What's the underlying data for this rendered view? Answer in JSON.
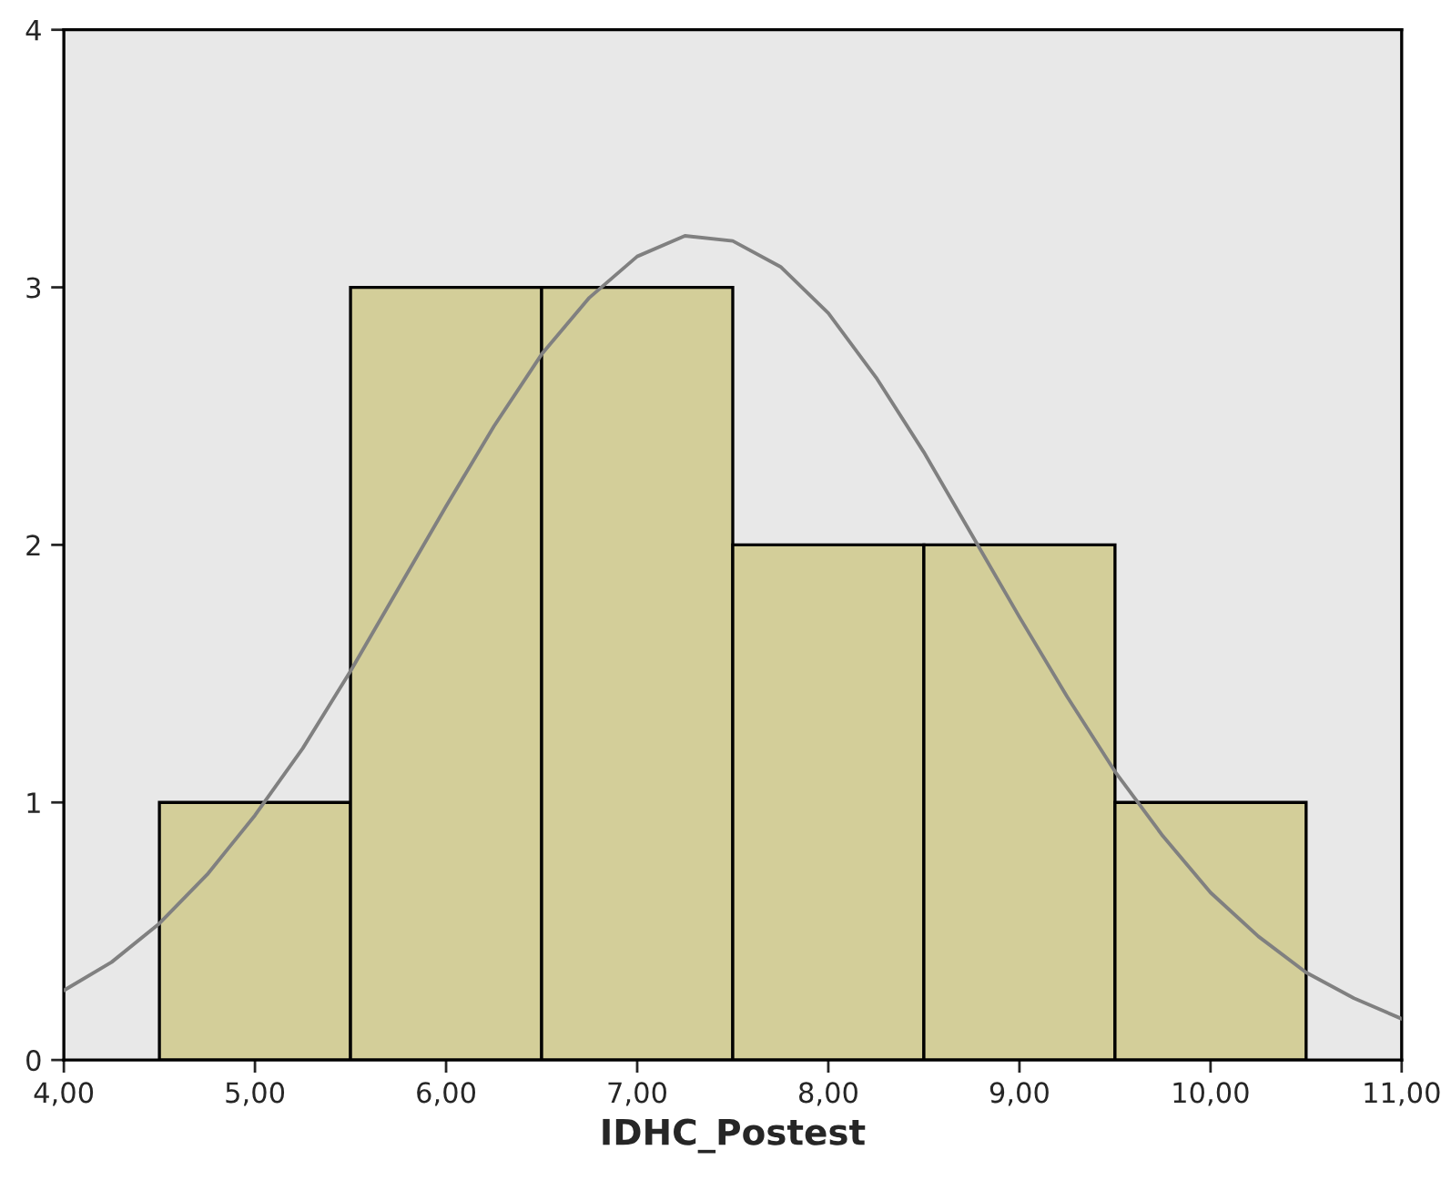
{
  "chart_data": {
    "type": "histogram",
    "xlabel": "IDHC_Postest",
    "bins": [
      4.5,
      5.5,
      6.5,
      7.5,
      8.5,
      9.5,
      10.5
    ],
    "series": [
      {
        "color": "#d3ce99",
        "values": [
          1,
          3,
          3,
          2,
          2,
          1
        ]
      },
      {
        "type": "line",
        "color": "#808080",
        "x": [
          4,
          4.25,
          4.5,
          4.75,
          5,
          5.25,
          5.5,
          5.75,
          6,
          6.25,
          6.5,
          6.75,
          7,
          7.25,
          7.5,
          7.75,
          8,
          8.25,
          8.5,
          8.75,
          9,
          9.25,
          9.5,
          9.75,
          10,
          10.25,
          10.5,
          10.75,
          11
        ],
        "values": [
          0.27,
          0.38,
          0.53,
          0.72,
          0.95,
          1.21,
          1.51,
          1.83,
          2.15,
          2.46,
          2.74,
          2.96,
          3.12,
          3.2,
          3.18,
          3.08,
          2.9,
          2.65,
          2.36,
          2.04,
          1.72,
          1.41,
          1.12,
          0.87,
          0.65,
          0.48,
          0.34,
          0.24,
          0.16
        ]
      }
    ],
    "xlim": [
      4,
      11
    ],
    "xticks": [
      {
        "value": 4,
        "label": "4,00"
      },
      {
        "value": 5,
        "label": "5,00"
      },
      {
        "value": 6,
        "label": "6,00"
      },
      {
        "value": 7,
        "label": "7,00"
      },
      {
        "value": 8,
        "label": "8,00"
      },
      {
        "value": 9,
        "label": "9,00"
      },
      {
        "value": 10,
        "label": "10,00"
      },
      {
        "value": 11,
        "label": "11,00"
      }
    ],
    "ylim": [
      0,
      4
    ],
    "yticks": [
      0,
      1,
      2,
      3,
      4
    ],
    "grid": false,
    "legend": false,
    "marker": "none",
    "line_style": "solid"
  }
}
